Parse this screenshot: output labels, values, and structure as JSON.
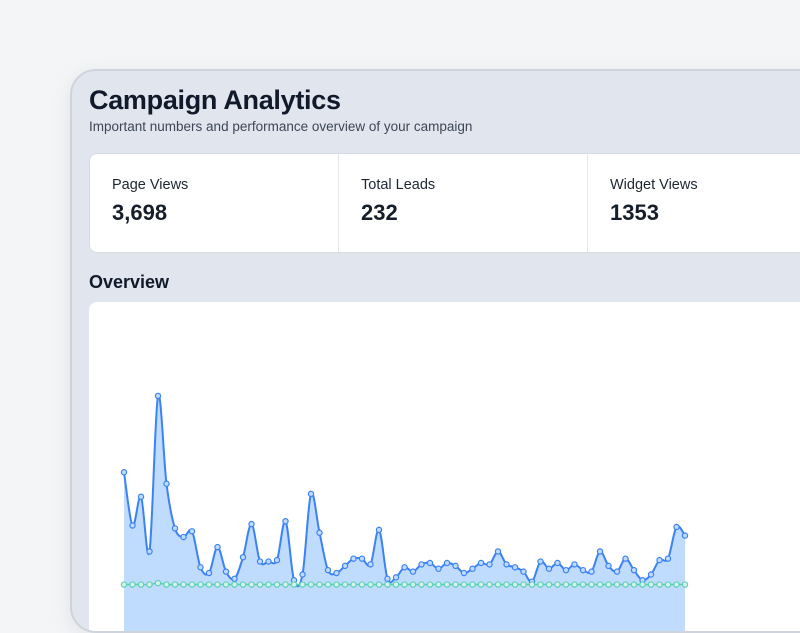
{
  "header": {
    "title": "Campaign Analytics",
    "subtitle": "Important numbers and performance overview of your campaign"
  },
  "stats": [
    {
      "label": "Page Views",
      "value": "3,698"
    },
    {
      "label": "Total Leads",
      "value": "232"
    },
    {
      "label": "Widget Views",
      "value": "1353"
    }
  ],
  "overview": {
    "title": "Overview"
  },
  "colors": {
    "series_primary": "#3b82f6",
    "series_primary_fill": "#bfdbfe",
    "series_secondary": "#5fd0b6"
  },
  "chart_data": {
    "type": "area",
    "title": "Overview",
    "xlabel": "",
    "ylabel": "",
    "grid": false,
    "ylim": [
      0,
      150
    ],
    "series": [
      {
        "name": "Page Views",
        "values": [
          79,
          42,
          62,
          24,
          132,
          71,
          40,
          34,
          38,
          13,
          9,
          27,
          10,
          5,
          20,
          43,
          17,
          17,
          18,
          45,
          4,
          8,
          64,
          37,
          11,
          9,
          14,
          19,
          19,
          15,
          39,
          5,
          6,
          13,
          10,
          15,
          16,
          12,
          16,
          14,
          9,
          12,
          16,
          15,
          24,
          15,
          13,
          10,
          3,
          17,
          12,
          16,
          11,
          15,
          11,
          10,
          24,
          14,
          10,
          19,
          11,
          4,
          8,
          18,
          19,
          41,
          35
        ]
      },
      {
        "name": "Widget Views",
        "values": [
          1,
          1,
          1,
          1,
          2,
          1,
          1,
          1,
          1,
          1,
          1,
          1,
          1,
          1,
          1,
          1,
          1,
          1,
          1,
          1,
          1,
          1,
          1,
          1,
          1,
          1,
          1,
          1,
          1,
          1,
          1,
          1,
          1,
          1,
          1,
          1,
          1,
          1,
          1,
          1,
          1,
          1,
          1,
          1,
          1,
          1,
          1,
          1,
          1,
          1,
          1,
          1,
          1,
          1,
          1,
          1,
          1,
          1,
          1,
          1,
          1,
          1,
          1,
          1,
          1,
          1,
          1
        ]
      }
    ]
  }
}
